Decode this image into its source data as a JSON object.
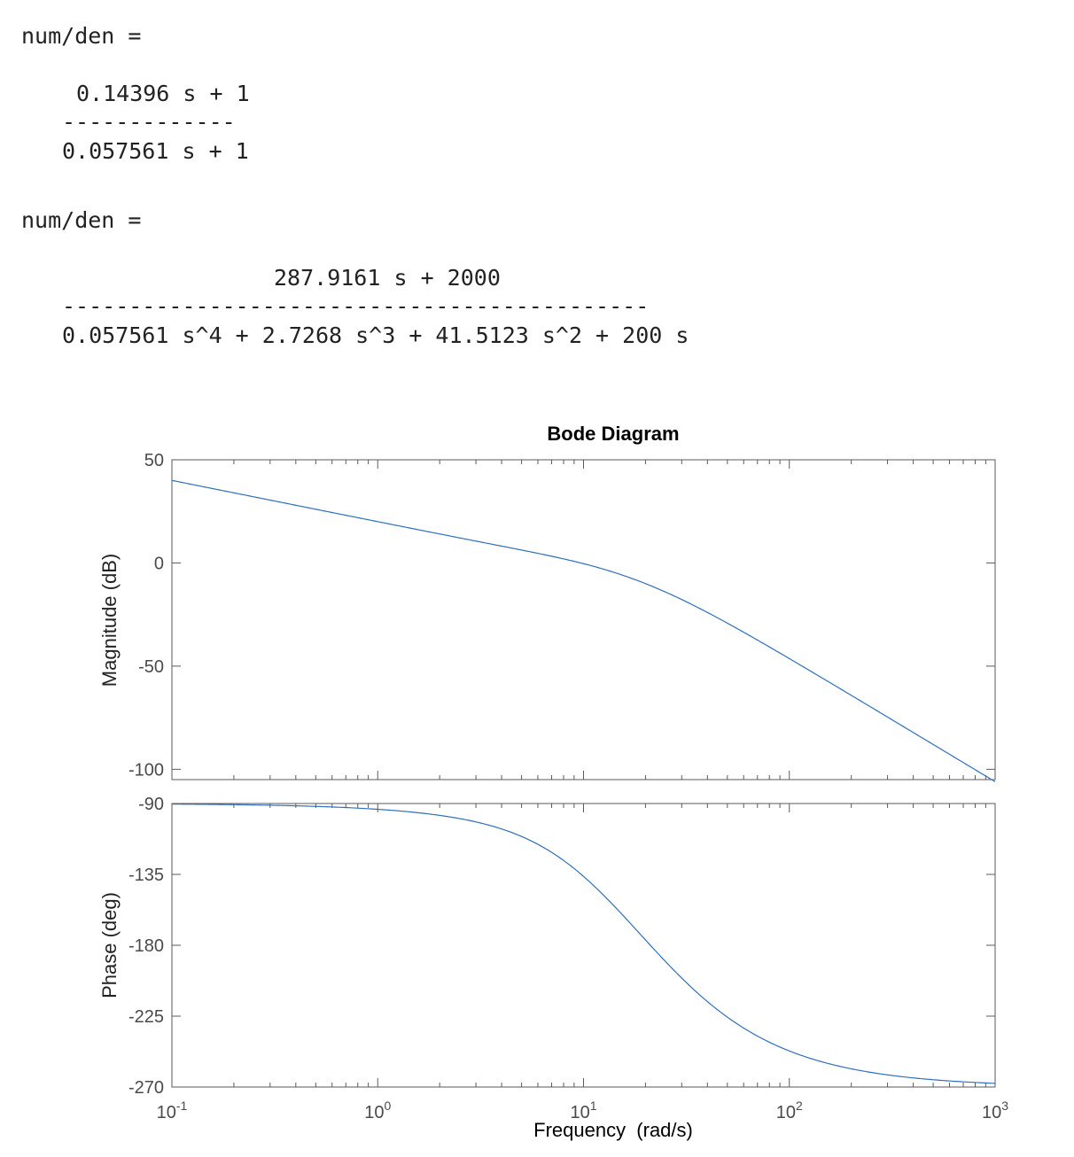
{
  "console": {
    "block1": {
      "label": "num/den =",
      "numerator": "0.14396 s + 1",
      "rule": "-------------",
      "denominator": "0.057561 s + 1"
    },
    "block2": {
      "label": "num/den =",
      "numerator": "287.9161 s + 2000",
      "rule": "--------------------------------------------",
      "denominator": "0.057561 s^4 + 2.7268 s^3 + 41.5123 s^2 + 200 s"
    }
  },
  "chart_data": {
    "type": "line",
    "title": "Bode Diagram",
    "xlabel": "Frequency  (rad/s)",
    "x_scale": "log",
    "xlim": [
      0.1,
      1000
    ],
    "x_ticks": [
      {
        "base": "10",
        "exp": "-1"
      },
      {
        "base": "10",
        "exp": "0"
      },
      {
        "base": "10",
        "exp": "1"
      },
      {
        "base": "10",
        "exp": "2"
      },
      {
        "base": "10",
        "exp": "3"
      }
    ],
    "transfer_function": {
      "numerator": [
        287.9161,
        2000
      ],
      "denominator": [
        0.057561,
        2.7268,
        41.5123,
        200,
        0
      ]
    },
    "magnitude": {
      "ylabel": "Magnitude (dB)",
      "ylim": [
        -105,
        50
      ],
      "y_ticks": [
        "50",
        "0",
        "-50",
        "-100"
      ],
      "points": [
        [
          0.1,
          40.0
        ],
        [
          0.3,
          30.5
        ],
        [
          1,
          20.0
        ],
        [
          3,
          10.4
        ],
        [
          10,
          -0.1
        ],
        [
          20,
          -9.4
        ],
        [
          50,
          -27.1
        ],
        [
          100,
          -43.6
        ],
        [
          300,
          -72.0
        ],
        [
          1000,
          -105.0
        ]
      ]
    },
    "phase": {
      "ylabel": "Phase (deg)",
      "ylim": [
        -270,
        -90
      ],
      "y_ticks": [
        "-90",
        "-135",
        "-180",
        "-225",
        "-270"
      ],
      "points": [
        [
          0.1,
          -90.7
        ],
        [
          1,
          -93.7
        ],
        [
          5,
          -107.5
        ],
        [
          10,
          -128.0
        ],
        [
          20,
          -165.1
        ],
        [
          50,
          -222.6
        ],
        [
          100,
          -246.6
        ],
        [
          1000,
          -267.2
        ]
      ]
    },
    "line_color": "#2e6fbd",
    "grid": false
  }
}
